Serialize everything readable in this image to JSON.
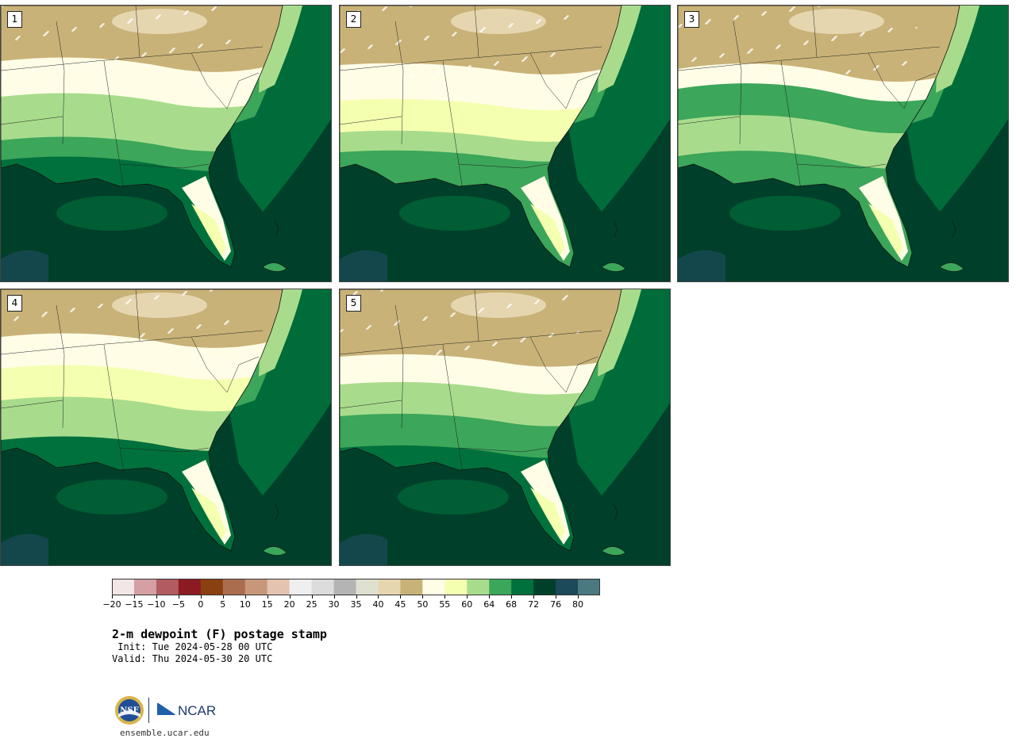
{
  "panels": [
    {
      "label": "1"
    },
    {
      "label": "2"
    },
    {
      "label": "3"
    },
    {
      "label": "4"
    },
    {
      "label": "5"
    }
  ],
  "colorbar": {
    "colors": [
      "#f2e6e6",
      "#d4a0a4",
      "#b25c62",
      "#8c1a22",
      "#8a4010",
      "#aa6e4e",
      "#c8977a",
      "#e4c4b0",
      "#efefef",
      "#dcdcdc",
      "#b4b4b4",
      "#e0e0d0",
      "#e6d6b0",
      "#c8b278",
      "#fffde6",
      "#f5ffb0",
      "#a8dc8c",
      "#3ca65a",
      "#00713c",
      "#00402a",
      "#1c4a5a",
      "#4a7a80"
    ],
    "ticks": [
      "−20",
      "−15",
      "−10",
      "−5",
      "0",
      "5",
      "10",
      "15",
      "20",
      "25",
      "30",
      "35",
      "40",
      "45",
      "50",
      "55",
      "60",
      "64",
      "68",
      "72",
      "76",
      "80"
    ]
  },
  "title": "2-m dewpoint (F) postage stamp",
  "init": " Init: Tue 2024-05-28 00 UTC",
  "valid": "Valid: Thu 2024-05-30 20 UTC",
  "logos": {
    "nsf": "NSF",
    "ncar": "NCAR"
  },
  "site": "ensemble.ucar.edu"
}
